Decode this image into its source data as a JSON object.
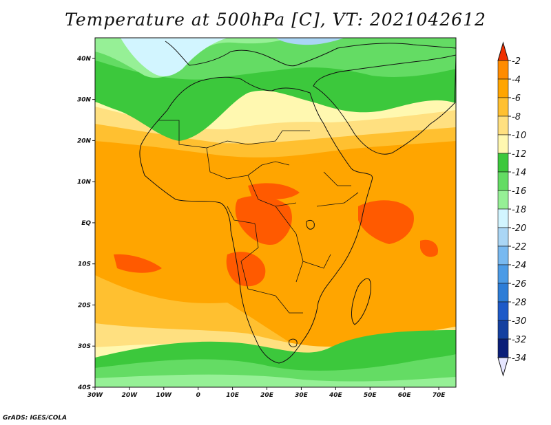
{
  "title": "Temperature at 500hPa [C], VT: 2021042612",
  "footer": "GrADS: IGES/COLA",
  "map": {
    "projection": "latlon",
    "lon_range": [
      -30,
      75
    ],
    "lat_range": [
      -40,
      45
    ],
    "x_ticks": [
      "30W",
      "20W",
      "10W",
      "0",
      "10E",
      "20E",
      "30E",
      "40E",
      "50E",
      "60E",
      "70E"
    ],
    "y_ticks": [
      "40N",
      "30N",
      "20N",
      "10N",
      "EQ",
      "10S",
      "20S",
      "30S",
      "40S"
    ],
    "region": "Africa",
    "warmest_zone": "Equatorial Africa and Indian Ocean (-4 to -2 C)",
    "coldest_zone": "Mediterranean / southwest Europe and Southern Ocean (-20 to -14 C)"
  },
  "colorbar": {
    "labels": [
      "-2",
      "-4",
      "-6",
      "-8",
      "-10",
      "-12",
      "-14",
      "-16",
      "-18",
      "-20",
      "-22",
      "-24",
      "-26",
      "-28",
      "-30",
      "-32",
      "-34"
    ],
    "colors": [
      "#ff5a00",
      "#ff8c00",
      "#ffa500",
      "#ffc030",
      "#ffe080",
      "#fff8b0",
      "#3cc83c",
      "#64dc64",
      "#96f096",
      "#d2f5ff",
      "#aad6f5",
      "#78b9f0",
      "#4b9be6",
      "#2d7dd7",
      "#1e5ac8",
      "#1440a0",
      "#0a1e78"
    ],
    "top_arrow_color": "#f03000",
    "bottom_arrow_color": "#e6e6ff"
  }
}
